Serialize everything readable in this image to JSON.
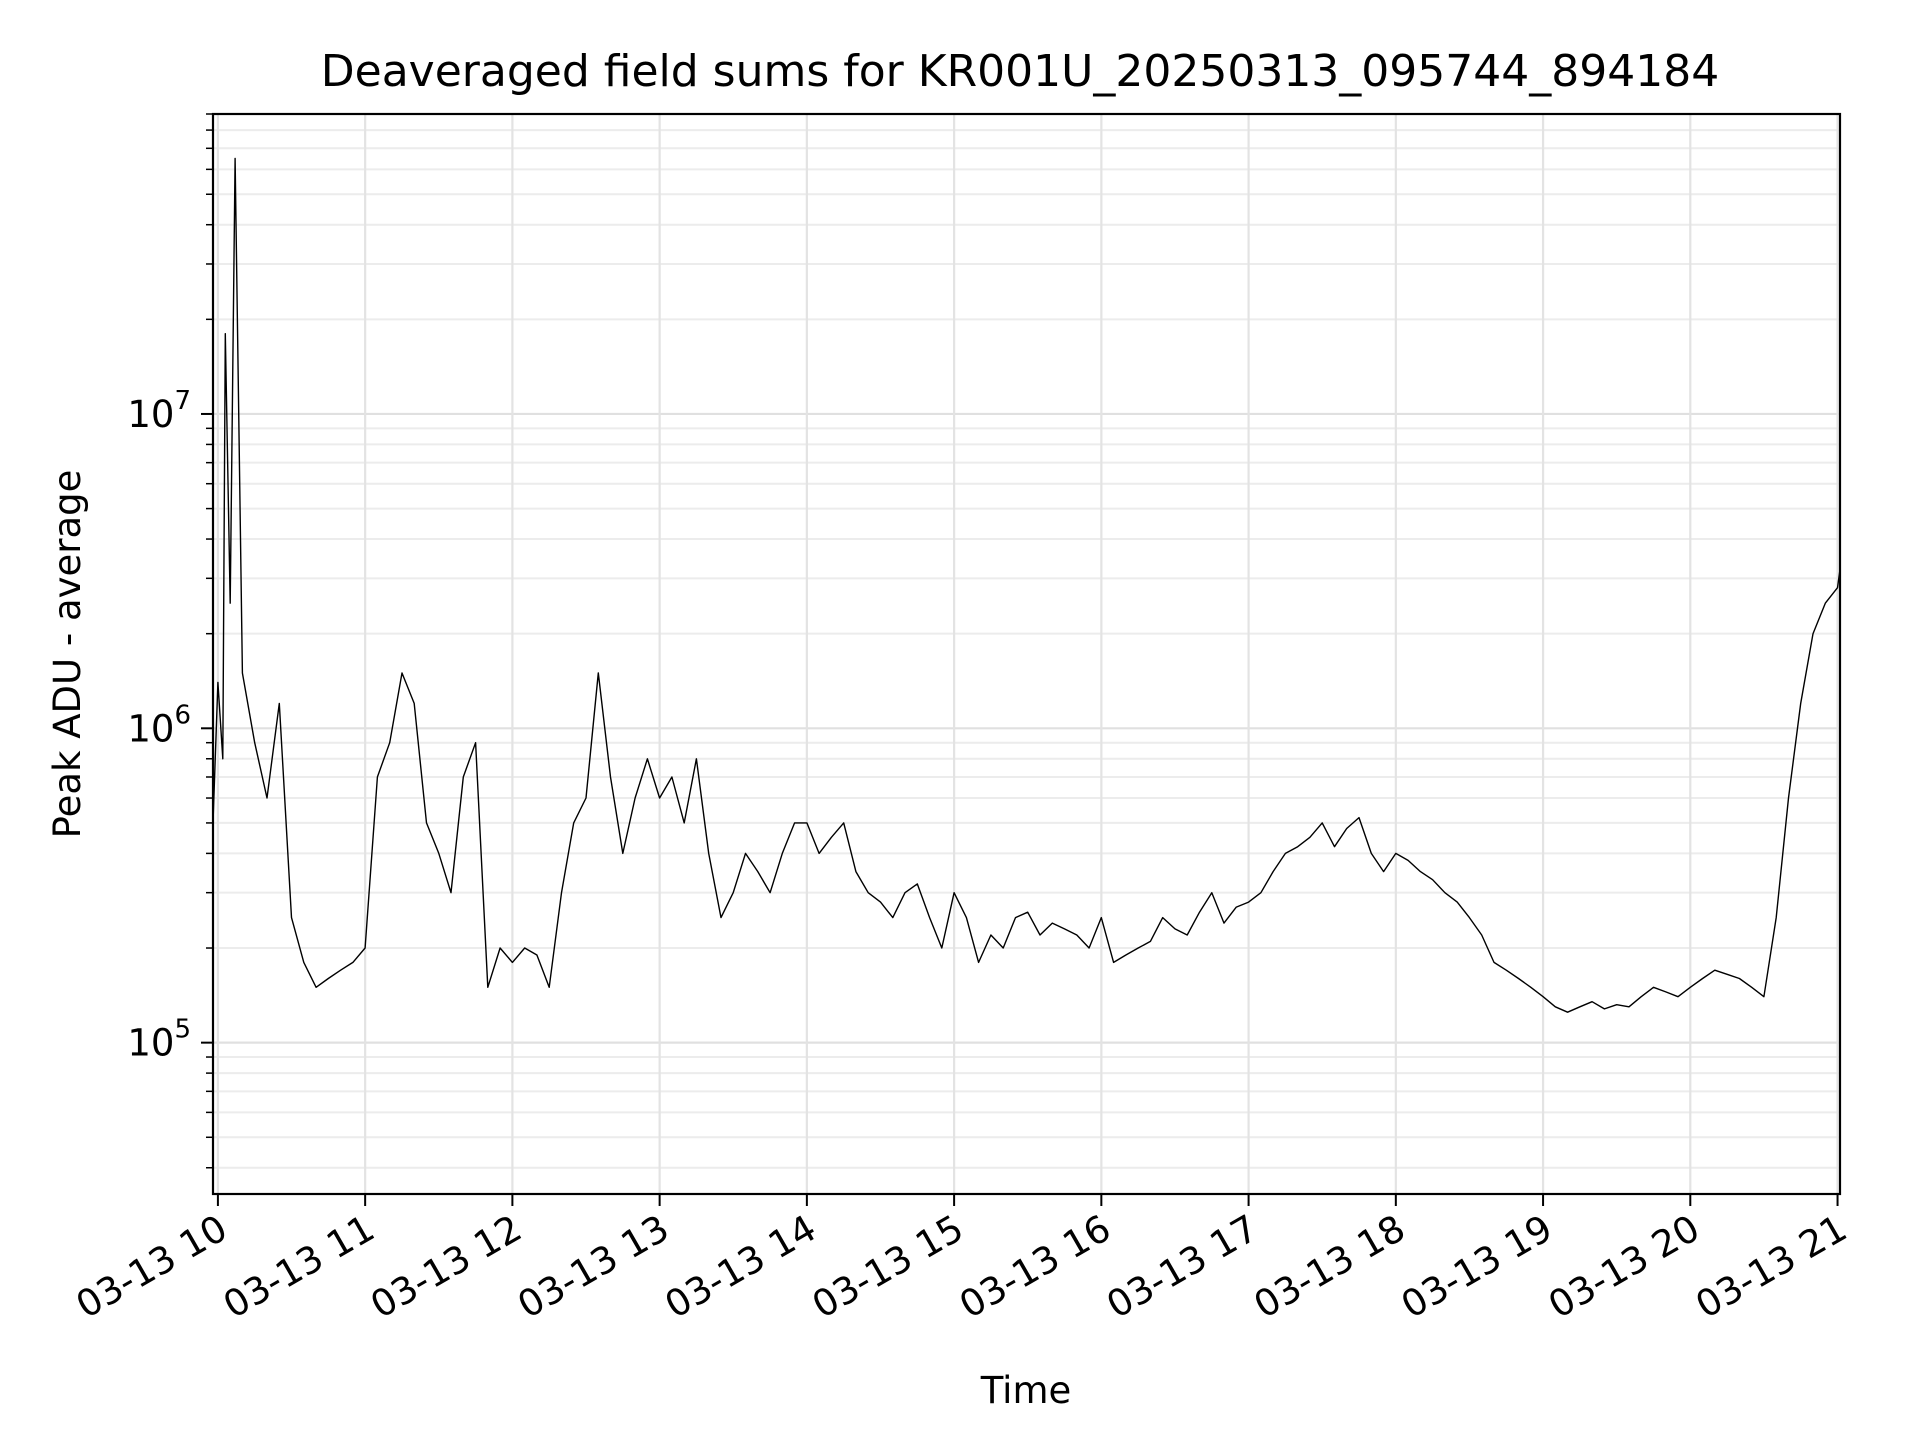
{
  "chart_data": {
    "type": "line",
    "title": "Deaveraged field sums for KR001U_20250313_095744_894184",
    "xlabel": "Time",
    "ylabel": "Peak ADU - average",
    "y_scale": "log",
    "xlim": [
      "2025-03-13 09:58",
      "2025-03-13 21:01"
    ],
    "ylim": [
      33000,
      90000000
    ],
    "grid": true,
    "x_ticks": [
      {
        "value": "2025-03-13 10:00",
        "label": "03-13 10"
      },
      {
        "value": "2025-03-13 11:00",
        "label": "03-13 11"
      },
      {
        "value": "2025-03-13 12:00",
        "label": "03-13 12"
      },
      {
        "value": "2025-03-13 13:00",
        "label": "03-13 13"
      },
      {
        "value": "2025-03-13 14:00",
        "label": "03-13 14"
      },
      {
        "value": "2025-03-13 15:00",
        "label": "03-13 15"
      },
      {
        "value": "2025-03-13 16:00",
        "label": "03-13 16"
      },
      {
        "value": "2025-03-13 17:00",
        "label": "03-13 17"
      },
      {
        "value": "2025-03-13 18:00",
        "label": "03-13 18"
      },
      {
        "value": "2025-03-13 19:00",
        "label": "03-13 19"
      },
      {
        "value": "2025-03-13 20:00",
        "label": "03-13 20"
      },
      {
        "value": "2025-03-13 21:00",
        "label": "03-13 21"
      }
    ],
    "y_ticks": [
      {
        "value": 100000,
        "base": "10",
        "exp": "5"
      },
      {
        "value": 1000000,
        "base": "10",
        "exp": "6"
      },
      {
        "value": 10000000,
        "base": "10",
        "exp": "7"
      }
    ],
    "series": [
      {
        "color": "#000000",
        "x": [
          "2025-03-13 09:58",
          "2025-03-13 10:00",
          "2025-03-13 10:02",
          "2025-03-13 10:03",
          "2025-03-13 10:05",
          "2025-03-13 10:07",
          "2025-03-13 10:10",
          "2025-03-13 10:15",
          "2025-03-13 10:20",
          "2025-03-13 10:25",
          "2025-03-13 10:30",
          "2025-03-13 10:35",
          "2025-03-13 10:40",
          "2025-03-13 10:45",
          "2025-03-13 10:50",
          "2025-03-13 10:55",
          "2025-03-13 11:00",
          "2025-03-13 11:05",
          "2025-03-13 11:10",
          "2025-03-13 11:15",
          "2025-03-13 11:20",
          "2025-03-13 11:25",
          "2025-03-13 11:30",
          "2025-03-13 11:35",
          "2025-03-13 11:40",
          "2025-03-13 11:45",
          "2025-03-13 11:50",
          "2025-03-13 11:55",
          "2025-03-13 12:00",
          "2025-03-13 12:05",
          "2025-03-13 12:10",
          "2025-03-13 12:15",
          "2025-03-13 12:20",
          "2025-03-13 12:25",
          "2025-03-13 12:30",
          "2025-03-13 12:35",
          "2025-03-13 12:40",
          "2025-03-13 12:45",
          "2025-03-13 12:50",
          "2025-03-13 12:55",
          "2025-03-13 13:00",
          "2025-03-13 13:05",
          "2025-03-13 13:10",
          "2025-03-13 13:15",
          "2025-03-13 13:20",
          "2025-03-13 13:25",
          "2025-03-13 13:30",
          "2025-03-13 13:35",
          "2025-03-13 13:40",
          "2025-03-13 13:45",
          "2025-03-13 13:50",
          "2025-03-13 13:55",
          "2025-03-13 14:00",
          "2025-03-13 14:05",
          "2025-03-13 14:10",
          "2025-03-13 14:15",
          "2025-03-13 14:20",
          "2025-03-13 14:25",
          "2025-03-13 14:30",
          "2025-03-13 14:35",
          "2025-03-13 14:40",
          "2025-03-13 14:45",
          "2025-03-13 14:50",
          "2025-03-13 14:55",
          "2025-03-13 15:00",
          "2025-03-13 15:05",
          "2025-03-13 15:10",
          "2025-03-13 15:15",
          "2025-03-13 15:20",
          "2025-03-13 15:25",
          "2025-03-13 15:30",
          "2025-03-13 15:35",
          "2025-03-13 15:40",
          "2025-03-13 15:45",
          "2025-03-13 15:50",
          "2025-03-13 15:55",
          "2025-03-13 16:00",
          "2025-03-13 16:05",
          "2025-03-13 16:10",
          "2025-03-13 16:15",
          "2025-03-13 16:20",
          "2025-03-13 16:25",
          "2025-03-13 16:30",
          "2025-03-13 16:35",
          "2025-03-13 16:40",
          "2025-03-13 16:45",
          "2025-03-13 16:50",
          "2025-03-13 16:55",
          "2025-03-13 17:00",
          "2025-03-13 17:05",
          "2025-03-13 17:10",
          "2025-03-13 17:15",
          "2025-03-13 17:20",
          "2025-03-13 17:25",
          "2025-03-13 17:30",
          "2025-03-13 17:35",
          "2025-03-13 17:40",
          "2025-03-13 17:45",
          "2025-03-13 17:50",
          "2025-03-13 17:55",
          "2025-03-13 18:00",
          "2025-03-13 18:05",
          "2025-03-13 18:10",
          "2025-03-13 18:15",
          "2025-03-13 18:20",
          "2025-03-13 18:25",
          "2025-03-13 18:30",
          "2025-03-13 18:35",
          "2025-03-13 18:40",
          "2025-03-13 18:45",
          "2025-03-13 18:50",
          "2025-03-13 18:55",
          "2025-03-13 19:00",
          "2025-03-13 19:05",
          "2025-03-13 19:10",
          "2025-03-13 19:15",
          "2025-03-13 19:20",
          "2025-03-13 19:25",
          "2025-03-13 19:30",
          "2025-03-13 19:35",
          "2025-03-13 19:40",
          "2025-03-13 19:45",
          "2025-03-13 19:50",
          "2025-03-13 19:55",
          "2025-03-13 20:00",
          "2025-03-13 20:05",
          "2025-03-13 20:10",
          "2025-03-13 20:15",
          "2025-03-13 20:20",
          "2025-03-13 20:25",
          "2025-03-13 20:30",
          "2025-03-13 20:35",
          "2025-03-13 20:40",
          "2025-03-13 20:45",
          "2025-03-13 20:50",
          "2025-03-13 20:55",
          "2025-03-13 21:00",
          "2025-03-13 21:01"
        ],
        "y": [
          500000,
          1400000,
          800000,
          18000000,
          2500000,
          65000000,
          1500000,
          900000,
          600000,
          1200000,
          250000,
          180000,
          150000,
          160000,
          170000,
          180000,
          200000,
          700000,
          900000,
          1500000,
          1200000,
          500000,
          400000,
          300000,
          700000,
          900000,
          150000,
          200000,
          180000,
          200000,
          190000,
          150000,
          300000,
          500000,
          600000,
          1500000,
          700000,
          400000,
          600000,
          800000,
          600000,
          700000,
          500000,
          800000,
          400000,
          250000,
          300000,
          400000,
          350000,
          300000,
          400000,
          500000,
          500000,
          400000,
          450000,
          500000,
          350000,
          300000,
          280000,
          250000,
          300000,
          320000,
          250000,
          200000,
          300000,
          250000,
          180000,
          220000,
          200000,
          250000,
          260000,
          220000,
          240000,
          230000,
          220000,
          200000,
          250000,
          180000,
          190000,
          200000,
          210000,
          250000,
          230000,
          220000,
          260000,
          300000,
          240000,
          270000,
          280000,
          300000,
          350000,
          400000,
          420000,
          450000,
          500000,
          420000,
          480000,
          520000,
          400000,
          350000,
          400000,
          380000,
          350000,
          330000,
          300000,
          280000,
          250000,
          220000,
          180000,
          170000,
          160000,
          150000,
          140000,
          130000,
          125000,
          130000,
          135000,
          128000,
          132000,
          130000,
          140000,
          150000,
          145000,
          140000,
          150000,
          160000,
          170000,
          165000,
          160000,
          150000,
          140000,
          250000,
          600000,
          1200000,
          2000000,
          2500000,
          2800000,
          3200000
        ]
      }
    ]
  }
}
